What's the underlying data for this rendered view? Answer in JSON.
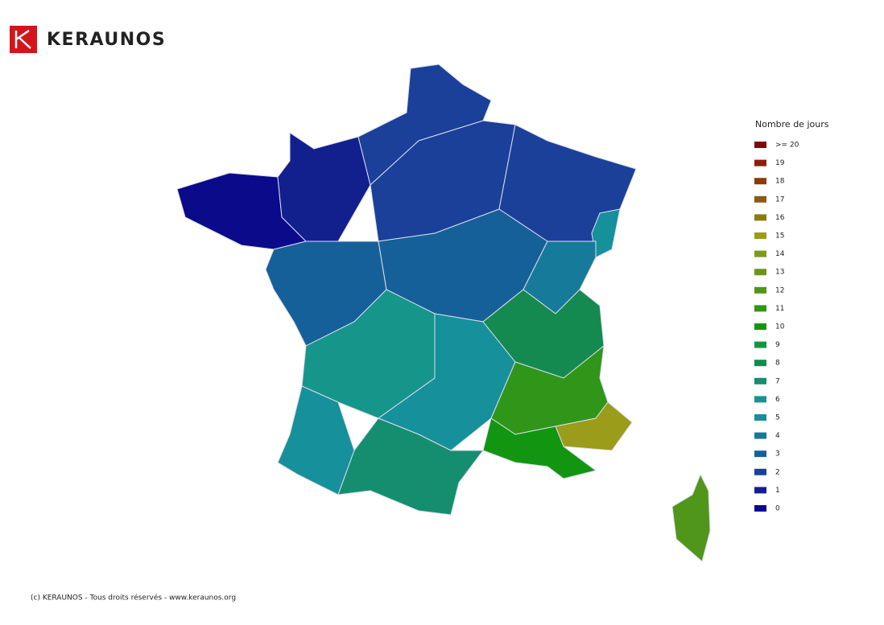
{
  "header": {
    "brand": "KERAUNOS"
  },
  "legend": {
    "title": "Nombre de jours",
    "items": [
      {
        "label": ">= 20",
        "color": "#7f0a0a"
      },
      {
        "label": "19",
        "color": "#8c1e08"
      },
      {
        "label": "18",
        "color": "#8c3a0a"
      },
      {
        "label": "17",
        "color": "#8c5a10"
      },
      {
        "label": "16",
        "color": "#8c7a14"
      },
      {
        "label": "15",
        "color": "#9a9c1a"
      },
      {
        "label": "14",
        "color": "#7f9a1a"
      },
      {
        "label": "13",
        "color": "#6a961a"
      },
      {
        "label": "12",
        "color": "#4f961a"
      },
      {
        "label": "11",
        "color": "#2f961a"
      },
      {
        "label": "10",
        "color": "#129612"
      },
      {
        "label": "9",
        "color": "#149640"
      },
      {
        "label": "8",
        "color": "#158a50"
      },
      {
        "label": "7",
        "color": "#158e70"
      },
      {
        "label": "6",
        "color": "#16968a"
      },
      {
        "label": "5",
        "color": "#16909a"
      },
      {
        "label": "4",
        "color": "#167a9a"
      },
      {
        "label": "3",
        "color": "#16609a"
      },
      {
        "label": "2",
        "color": "#1a409a"
      },
      {
        "label": "1",
        "color": "#12208e"
      },
      {
        "label": "0",
        "color": "#0a0a8a"
      }
    ]
  },
  "map": {
    "values": [
      0,
      1,
      2,
      2,
      2,
      5,
      3,
      3,
      4,
      6,
      5,
      5,
      7,
      8,
      11,
      15,
      10,
      12
    ]
  },
  "footer": {
    "text": "(c) KERAUNOS - Tous droits réservés - www.keraunos.org"
  }
}
